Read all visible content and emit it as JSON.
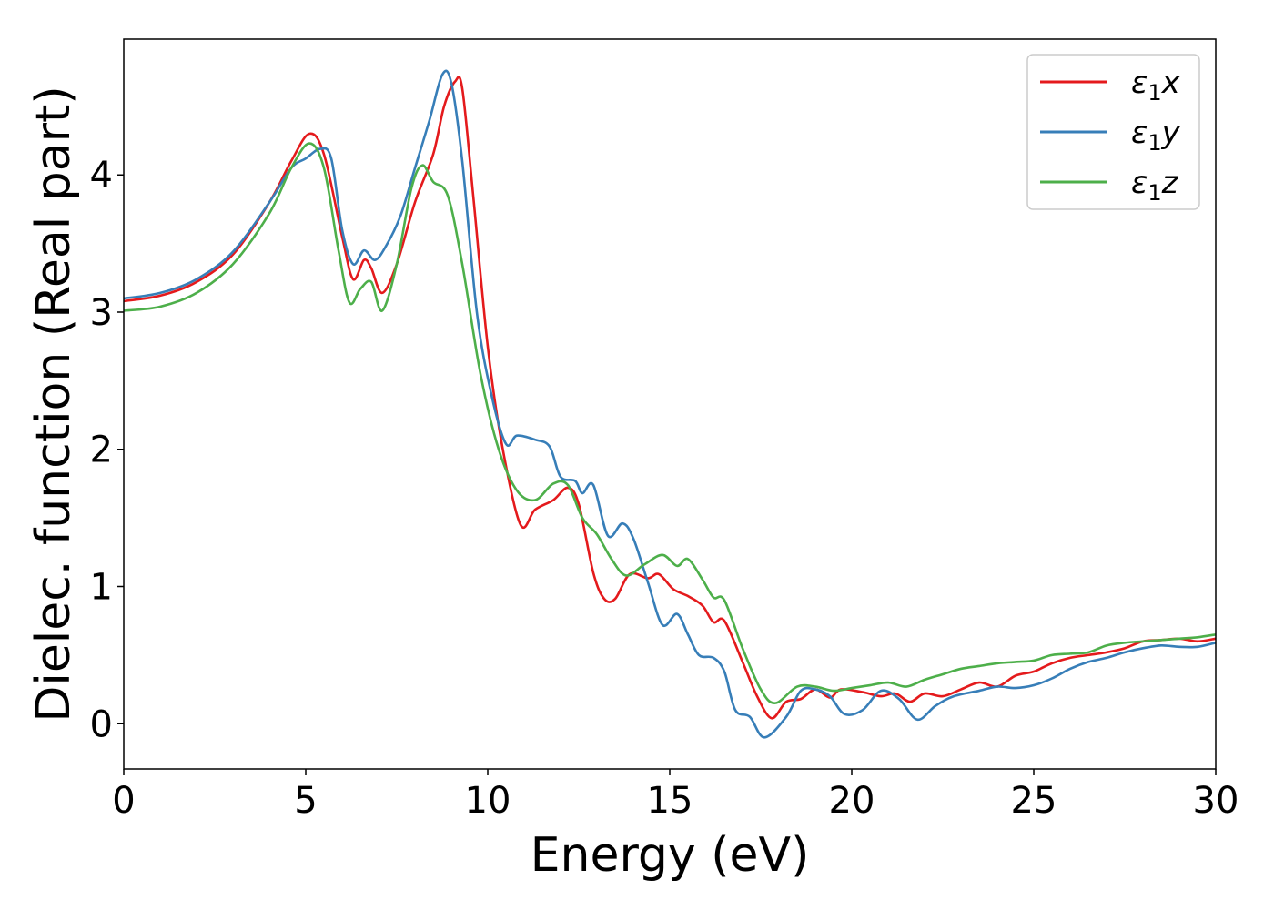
{
  "chart_data": {
    "type": "line",
    "xlabel": "Energy (eV)",
    "ylabel": "Dielec. function (Real part)",
    "xlim": [
      0,
      30
    ],
    "ylim": [
      -0.33,
      4.99
    ],
    "xticks": [
      0,
      5,
      10,
      15,
      20,
      25,
      30
    ],
    "yticks": [
      0,
      1,
      2,
      3,
      4
    ],
    "grid": false,
    "legend_position": "top-right",
    "series": [
      {
        "name": "ε1x",
        "legend_base": "ε",
        "legend_sub": "1",
        "legend_tail": "x",
        "color": "#e41a1c",
        "points": [
          [
            0,
            3.08
          ],
          [
            1,
            3.12
          ],
          [
            2,
            3.22
          ],
          [
            3,
            3.42
          ],
          [
            4,
            3.8
          ],
          [
            4.6,
            4.1
          ],
          [
            5.1,
            4.3
          ],
          [
            5.5,
            4.15
          ],
          [
            6,
            3.55
          ],
          [
            6.3,
            3.24
          ],
          [
            6.6,
            3.38
          ],
          [
            6.8,
            3.32
          ],
          [
            7.1,
            3.14
          ],
          [
            7.5,
            3.35
          ],
          [
            8,
            3.8
          ],
          [
            8.5,
            4.15
          ],
          [
            8.8,
            4.5
          ],
          [
            9.1,
            4.68
          ],
          [
            9.3,
            4.63
          ],
          [
            9.6,
            3.85
          ],
          [
            10,
            2.75
          ],
          [
            10.4,
            2.02
          ],
          [
            10.9,
            1.45
          ],
          [
            11.3,
            1.56
          ],
          [
            11.8,
            1.63
          ],
          [
            12.2,
            1.72
          ],
          [
            12.5,
            1.6
          ],
          [
            12.9,
            1.1
          ],
          [
            13.2,
            0.91
          ],
          [
            13.5,
            0.91
          ],
          [
            13.9,
            1.09
          ],
          [
            14.4,
            1.06
          ],
          [
            14.7,
            1.09
          ],
          [
            15.1,
            0.98
          ],
          [
            15.5,
            0.93
          ],
          [
            15.9,
            0.86
          ],
          [
            16.2,
            0.74
          ],
          [
            16.5,
            0.75
          ],
          [
            17,
            0.45
          ],
          [
            17.4,
            0.2
          ],
          [
            17.8,
            0.04
          ],
          [
            18.2,
            0.16
          ],
          [
            18.6,
            0.18
          ],
          [
            19,
            0.25
          ],
          [
            19.4,
            0.19
          ],
          [
            19.7,
            0.25
          ],
          [
            20.3,
            0.23
          ],
          [
            20.8,
            0.2
          ],
          [
            21.2,
            0.22
          ],
          [
            21.6,
            0.16
          ],
          [
            22,
            0.22
          ],
          [
            22.5,
            0.2
          ],
          [
            23,
            0.25
          ],
          [
            23.5,
            0.3
          ],
          [
            24,
            0.27
          ],
          [
            24.5,
            0.35
          ],
          [
            25,
            0.38
          ],
          [
            25.5,
            0.44
          ],
          [
            26,
            0.48
          ],
          [
            26.5,
            0.5
          ],
          [
            27,
            0.52
          ],
          [
            27.5,
            0.55
          ],
          [
            28,
            0.6
          ],
          [
            28.5,
            0.61
          ],
          [
            29,
            0.62
          ],
          [
            29.5,
            0.6
          ],
          [
            30,
            0.62
          ]
        ]
      },
      {
        "name": "ε1y",
        "legend_base": "ε",
        "legend_sub": "1",
        "legend_tail": "y",
        "color": "#377eb8",
        "points": [
          [
            0,
            3.1
          ],
          [
            1,
            3.14
          ],
          [
            2,
            3.24
          ],
          [
            3,
            3.44
          ],
          [
            4,
            3.8
          ],
          [
            4.6,
            4.05
          ],
          [
            5,
            4.12
          ],
          [
            5.4,
            4.19
          ],
          [
            5.7,
            4.12
          ],
          [
            6,
            3.6
          ],
          [
            6.3,
            3.35
          ],
          [
            6.6,
            3.45
          ],
          [
            6.9,
            3.38
          ],
          [
            7.2,
            3.48
          ],
          [
            7.6,
            3.7
          ],
          [
            8,
            4.05
          ],
          [
            8.4,
            4.4
          ],
          [
            8.75,
            4.73
          ],
          [
            9,
            4.67
          ],
          [
            9.3,
            4.1
          ],
          [
            9.7,
            3.0
          ],
          [
            10.1,
            2.4
          ],
          [
            10.5,
            2.04
          ],
          [
            10.8,
            2.1
          ],
          [
            11.3,
            2.07
          ],
          [
            11.7,
            2.02
          ],
          [
            12,
            1.8
          ],
          [
            12.4,
            1.77
          ],
          [
            12.6,
            1.68
          ],
          [
            12.9,
            1.74
          ],
          [
            13.3,
            1.37
          ],
          [
            13.7,
            1.46
          ],
          [
            14,
            1.35
          ],
          [
            14.4,
            1.03
          ],
          [
            14.8,
            0.72
          ],
          [
            15.2,
            0.8
          ],
          [
            15.5,
            0.65
          ],
          [
            15.8,
            0.5
          ],
          [
            16.2,
            0.48
          ],
          [
            16.5,
            0.38
          ],
          [
            16.8,
            0.1
          ],
          [
            17.2,
            0.05
          ],
          [
            17.6,
            -0.1
          ],
          [
            18.2,
            0.05
          ],
          [
            18.6,
            0.24
          ],
          [
            19,
            0.25
          ],
          [
            19.4,
            0.2
          ],
          [
            19.8,
            0.07
          ],
          [
            20.3,
            0.1
          ],
          [
            20.8,
            0.24
          ],
          [
            21.3,
            0.18
          ],
          [
            21.8,
            0.03
          ],
          [
            22.3,
            0.13
          ],
          [
            22.8,
            0.2
          ],
          [
            23.5,
            0.24
          ],
          [
            24,
            0.27
          ],
          [
            24.5,
            0.26
          ],
          [
            25,
            0.28
          ],
          [
            25.5,
            0.33
          ],
          [
            26,
            0.4
          ],
          [
            26.5,
            0.45
          ],
          [
            27,
            0.48
          ],
          [
            27.5,
            0.52
          ],
          [
            28,
            0.55
          ],
          [
            28.5,
            0.57
          ],
          [
            29,
            0.56
          ],
          [
            29.5,
            0.56
          ],
          [
            30,
            0.59
          ]
        ]
      },
      {
        "name": "ε1z",
        "legend_base": "ε",
        "legend_sub": "1",
        "legend_tail": "z",
        "color": "#4daf4a",
        "points": [
          [
            0,
            3.01
          ],
          [
            1,
            3.04
          ],
          [
            2,
            3.14
          ],
          [
            3,
            3.35
          ],
          [
            4,
            3.72
          ],
          [
            4.6,
            4.05
          ],
          [
            5.1,
            4.23
          ],
          [
            5.5,
            4.05
          ],
          [
            5.9,
            3.45
          ],
          [
            6.2,
            3.07
          ],
          [
            6.5,
            3.17
          ],
          [
            6.8,
            3.22
          ],
          [
            7.1,
            3.01
          ],
          [
            7.5,
            3.35
          ],
          [
            7.9,
            3.9
          ],
          [
            8.2,
            4.07
          ],
          [
            8.5,
            3.95
          ],
          [
            8.9,
            3.85
          ],
          [
            9.3,
            3.35
          ],
          [
            9.8,
            2.55
          ],
          [
            10.3,
            2.0
          ],
          [
            10.8,
            1.7
          ],
          [
            11.3,
            1.63
          ],
          [
            11.8,
            1.75
          ],
          [
            12.2,
            1.74
          ],
          [
            12.6,
            1.5
          ],
          [
            13,
            1.38
          ],
          [
            13.4,
            1.2
          ],
          [
            13.8,
            1.08
          ],
          [
            14.3,
            1.16
          ],
          [
            14.8,
            1.23
          ],
          [
            15.2,
            1.15
          ],
          [
            15.5,
            1.2
          ],
          [
            15.9,
            1.05
          ],
          [
            16.2,
            0.92
          ],
          [
            16.5,
            0.9
          ],
          [
            17,
            0.55
          ],
          [
            17.5,
            0.25
          ],
          [
            17.9,
            0.15
          ],
          [
            18.5,
            0.27
          ],
          [
            19,
            0.27
          ],
          [
            19.5,
            0.24
          ],
          [
            20,
            0.26
          ],
          [
            20.5,
            0.28
          ],
          [
            21,
            0.3
          ],
          [
            21.5,
            0.27
          ],
          [
            22,
            0.32
          ],
          [
            22.5,
            0.36
          ],
          [
            23,
            0.4
          ],
          [
            23.5,
            0.42
          ],
          [
            24,
            0.44
          ],
          [
            24.5,
            0.45
          ],
          [
            25,
            0.46
          ],
          [
            25.5,
            0.5
          ],
          [
            26,
            0.51
          ],
          [
            26.5,
            0.52
          ],
          [
            27,
            0.57
          ],
          [
            27.5,
            0.59
          ],
          [
            28,
            0.6
          ],
          [
            28.5,
            0.61
          ],
          [
            29,
            0.62
          ],
          [
            29.5,
            0.63
          ],
          [
            30,
            0.65
          ]
        ]
      }
    ]
  }
}
